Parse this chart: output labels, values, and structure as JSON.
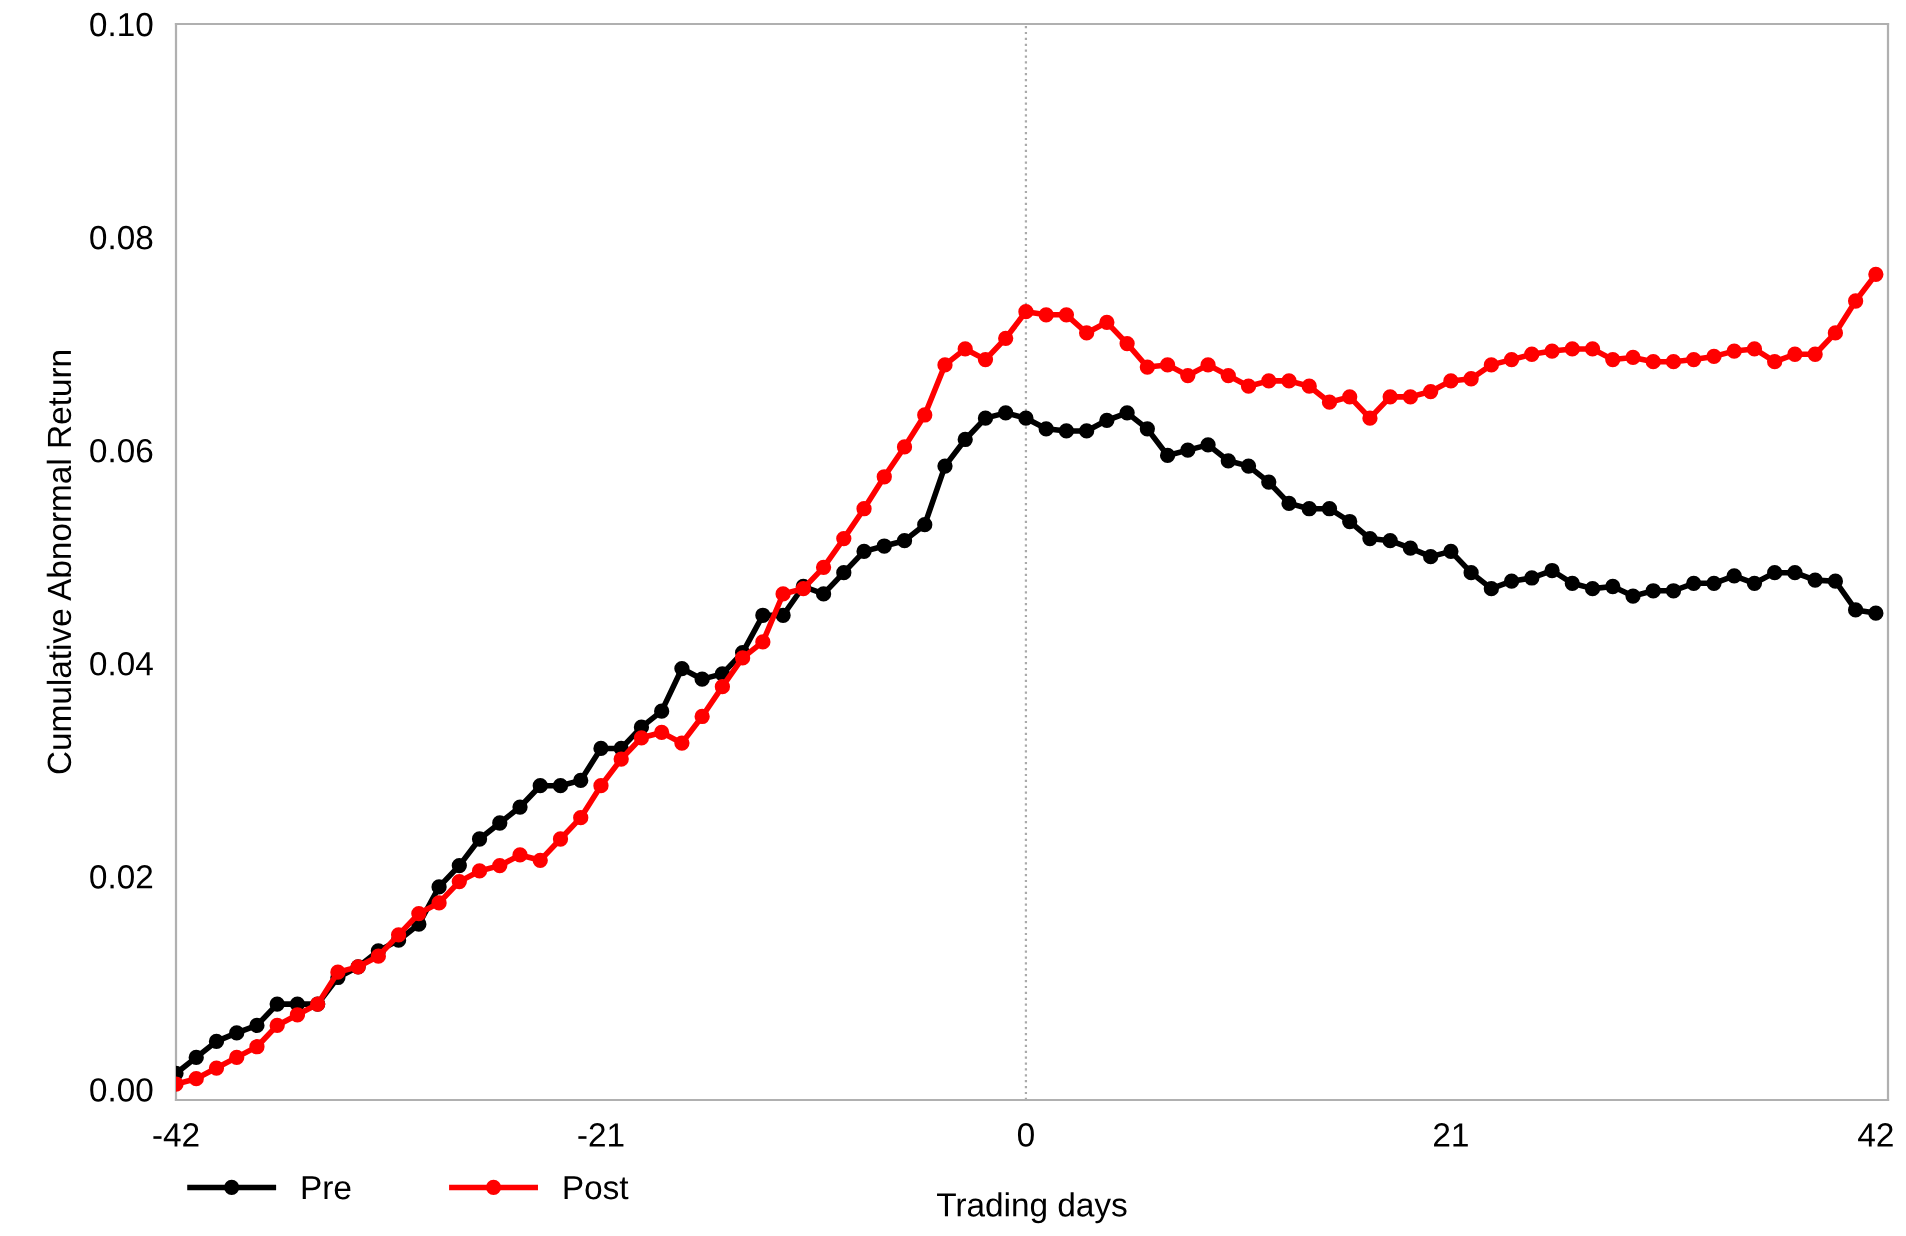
{
  "chart_data": {
    "type": "line",
    "xlabel": "Trading days",
    "ylabel": "Cumulative Abnormal Return",
    "x": [
      -42,
      -41,
      -40,
      -39,
      -38,
      -37,
      -36,
      -35,
      -34,
      -33,
      -32,
      -31,
      -30,
      -29,
      -28,
      -27,
      -26,
      -25,
      -24,
      -23,
      -22,
      -21,
      -20,
      -19,
      -18,
      -17,
      -16,
      -15,
      -14,
      -13,
      -12,
      -11,
      -10,
      -9,
      -8,
      -7,
      -6,
      -5,
      -4,
      -3,
      -2,
      -1,
      0,
      1,
      2,
      3,
      4,
      5,
      6,
      7,
      8,
      9,
      10,
      11,
      12,
      13,
      14,
      15,
      16,
      17,
      18,
      19,
      20,
      21,
      22,
      23,
      24,
      25,
      26,
      27,
      28,
      29,
      30,
      31,
      32,
      33,
      34,
      35,
      36,
      37,
      38,
      39,
      40,
      41,
      42
    ],
    "series": [
      {
        "name": "Pre",
        "color": "#000000",
        "values": [
          0.0015,
          0.003,
          0.0045,
          0.0053,
          0.006,
          0.008,
          0.008,
          0.008,
          0.0105,
          0.0115,
          0.013,
          0.014,
          0.0155,
          0.019,
          0.021,
          0.0235,
          0.025,
          0.0265,
          0.0285,
          0.0285,
          0.029,
          0.032,
          0.032,
          0.034,
          0.0355,
          0.0395,
          0.0385,
          0.039,
          0.041,
          0.0445,
          0.0445,
          0.0472,
          0.0465,
          0.0485,
          0.0505,
          0.051,
          0.0515,
          0.053,
          0.0585,
          0.061,
          0.063,
          0.0635,
          0.063,
          0.062,
          0.0618,
          0.0618,
          0.0628,
          0.0635,
          0.062,
          0.0595,
          0.06,
          0.0605,
          0.059,
          0.0585,
          0.057,
          0.055,
          0.0545,
          0.0545,
          0.0533,
          0.0517,
          0.0515,
          0.0508,
          0.05,
          0.0505,
          0.0485,
          0.047,
          0.0477,
          0.048,
          0.0487,
          0.0475,
          0.047,
          0.0472,
          0.0463,
          0.0468,
          0.0468,
          0.0475,
          0.0475,
          0.0482,
          0.0475,
          0.0485,
          0.0485,
          0.0478,
          0.0477,
          0.045,
          0.0447
        ]
      },
      {
        "name": "Post",
        "color": "#ff0000",
        "values": [
          0.0005,
          0.001,
          0.002,
          0.003,
          0.004,
          0.006,
          0.007,
          0.008,
          0.011,
          0.0115,
          0.0125,
          0.0145,
          0.0165,
          0.0175,
          0.0195,
          0.0205,
          0.021,
          0.022,
          0.0215,
          0.0235,
          0.0255,
          0.0285,
          0.031,
          0.033,
          0.0335,
          0.0325,
          0.035,
          0.0378,
          0.0405,
          0.042,
          0.0465,
          0.047,
          0.049,
          0.0517,
          0.0545,
          0.0575,
          0.0603,
          0.0633,
          0.068,
          0.0695,
          0.0685,
          0.0705,
          0.073,
          0.0727,
          0.0727,
          0.071,
          0.072,
          0.07,
          0.0678,
          0.068,
          0.067,
          0.068,
          0.067,
          0.066,
          0.0665,
          0.0665,
          0.066,
          0.0645,
          0.065,
          0.063,
          0.065,
          0.065,
          0.0655,
          0.0665,
          0.0667,
          0.068,
          0.0685,
          0.069,
          0.0693,
          0.0695,
          0.0695,
          0.0685,
          0.0687,
          0.0683,
          0.0683,
          0.0685,
          0.0688,
          0.0693,
          0.0695,
          0.0683,
          0.069,
          0.069,
          0.071,
          0.074,
          0.0765
        ]
      }
    ],
    "xlim": [
      -42,
      42.6
    ],
    "xticks": [
      -42,
      -21,
      0,
      21,
      42
    ],
    "ylim": [
      -0.001,
      0.1
    ],
    "yticks": [
      {
        "value": 0,
        "label": "0.00"
      },
      {
        "value": 0.02,
        "label": "0.02"
      },
      {
        "value": 0.04,
        "label": "0.04"
      },
      {
        "value": 0.06,
        "label": "0.06"
      },
      {
        "value": 0.08,
        "label": "0.08"
      },
      {
        "value": 0.1,
        "label": "0.10"
      }
    ],
    "ref_lines": [
      {
        "axis": "x",
        "value": 0,
        "color": "#aaaaaa",
        "line_style": "dotted"
      }
    ],
    "marker": "circle",
    "line_style": "solid",
    "legend": "bottom left",
    "grid": false
  }
}
